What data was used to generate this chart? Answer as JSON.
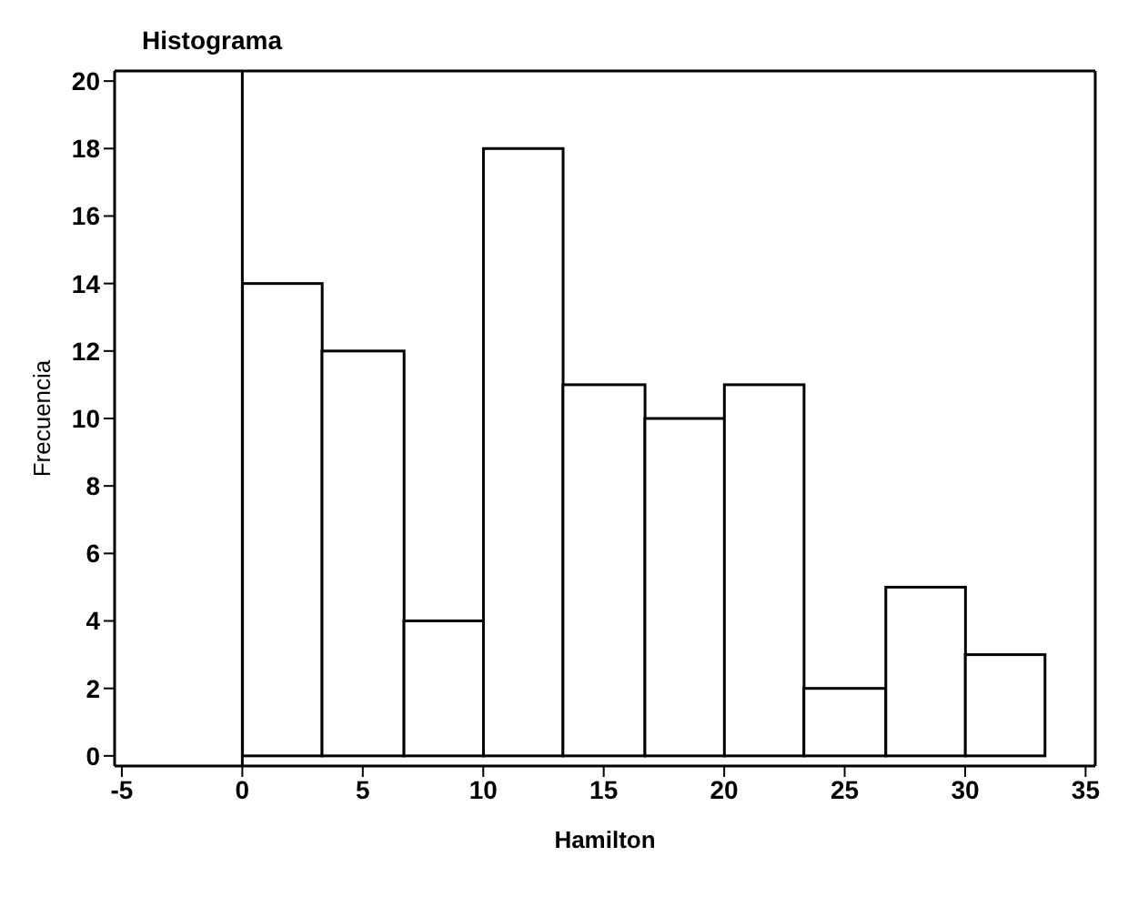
{
  "chart_data": {
    "type": "histogram",
    "title": "Histograma",
    "xlabel": "Hamilton",
    "ylabel": "Frecuencia",
    "bins": [
      0,
      3.3,
      6.7,
      10,
      13.3,
      16.7,
      20,
      23.3,
      26.7,
      30,
      33.3
    ],
    "values": [
      14,
      12,
      4,
      18,
      11,
      10,
      11,
      2,
      5,
      3
    ],
    "color": "#ffffff",
    "xlim": [
      -5.3,
      35.4
    ],
    "ylim": [
      -0.3,
      20.3
    ],
    "xticks": [
      -5,
      0,
      5,
      10,
      15,
      20,
      25,
      30,
      35
    ],
    "yticks": [
      0,
      2,
      4,
      6,
      8,
      10,
      12,
      14,
      16,
      18,
      20
    ],
    "ref_lines": [
      {
        "axis": "x",
        "value": 0
      }
    ],
    "grid": false,
    "legend": false
  }
}
